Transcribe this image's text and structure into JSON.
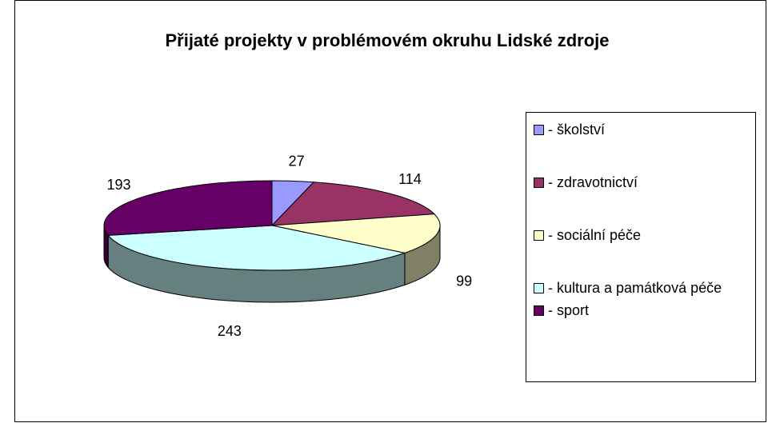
{
  "chart_data": {
    "type": "pie",
    "title": "Přijaté projekty v problémovém okruhu Lidské zdroje",
    "categories": [
      "- školství",
      "- zdravotnictví",
      "- sociální péče",
      "- kultura a památková péče",
      "- sport"
    ],
    "values": [
      27,
      114,
      99,
      243,
      193
    ],
    "colors": [
      "#9999ff",
      "#993366",
      "#ffffcc",
      "#ccffff",
      "#660066"
    ],
    "side_colors": [
      "#4d4d80",
      "#4d1a33",
      "#808066",
      "#668080",
      "#330033"
    ],
    "legend": "right"
  }
}
